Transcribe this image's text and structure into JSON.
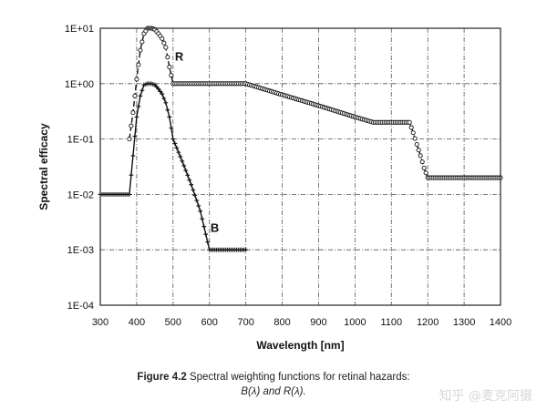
{
  "chart_data": {
    "type": "line",
    "xlabel": "Wavelength [nm]",
    "ylabel": "Spectral efficacy",
    "xlim": [
      300,
      1400
    ],
    "ylim": [
      0.0001,
      10
    ],
    "yscale": "log",
    "x_ticks": [
      "300",
      "400",
      "500",
      "600",
      "700",
      "800",
      "900",
      "1000",
      "1100",
      "1200",
      "1300",
      "1400"
    ],
    "y_ticks": [
      "1E-04",
      "1E-03",
      "1E-02",
      "1E-01",
      "1E+00",
      "1E+01"
    ],
    "grid": true,
    "series": [
      {
        "name": "B",
        "marker": "plus",
        "x": [
          300,
          380,
          390,
          400,
          410,
          420,
          430,
          440,
          450,
          460,
          470,
          480,
          490,
          500,
          525,
          550,
          575,
          600,
          625,
          650,
          675,
          700
        ],
        "y": [
          0.01,
          0.01,
          0.05,
          0.25,
          0.6,
          0.95,
          1.0,
          1.0,
          0.95,
          0.8,
          0.65,
          0.45,
          0.25,
          0.1,
          0.04,
          0.015,
          0.005,
          0.001,
          0.001,
          0.001,
          0.001,
          0.001
        ]
      },
      {
        "name": "R",
        "marker": "circle",
        "x": [
          380,
          390,
          400,
          410,
          420,
          430,
          440,
          450,
          460,
          470,
          480,
          490,
          500,
          600,
          700,
          800,
          900,
          1000,
          1050,
          1100,
          1150,
          1160,
          1170,
          1180,
          1190,
          1200,
          1300,
          1400
        ],
        "y": [
          0.1,
          0.3,
          1.2,
          4.0,
          8.0,
          10.0,
          10.0,
          9.5,
          8.0,
          6.5,
          4.5,
          2.0,
          1.0,
          1.0,
          1.0,
          0.63,
          0.4,
          0.25,
          0.2,
          0.2,
          0.2,
          0.13,
          0.08,
          0.05,
          0.03,
          0.02,
          0.02,
          0.02
        ]
      }
    ],
    "annotations": [
      "R",
      "B"
    ]
  },
  "caption": {
    "bold": "Figure 4.2",
    "text": " Spectral weighting functions for retinal hazards:",
    "line2": "B(λ) and R(λ)."
  },
  "watermark": "知乎 @麦克阿摄"
}
